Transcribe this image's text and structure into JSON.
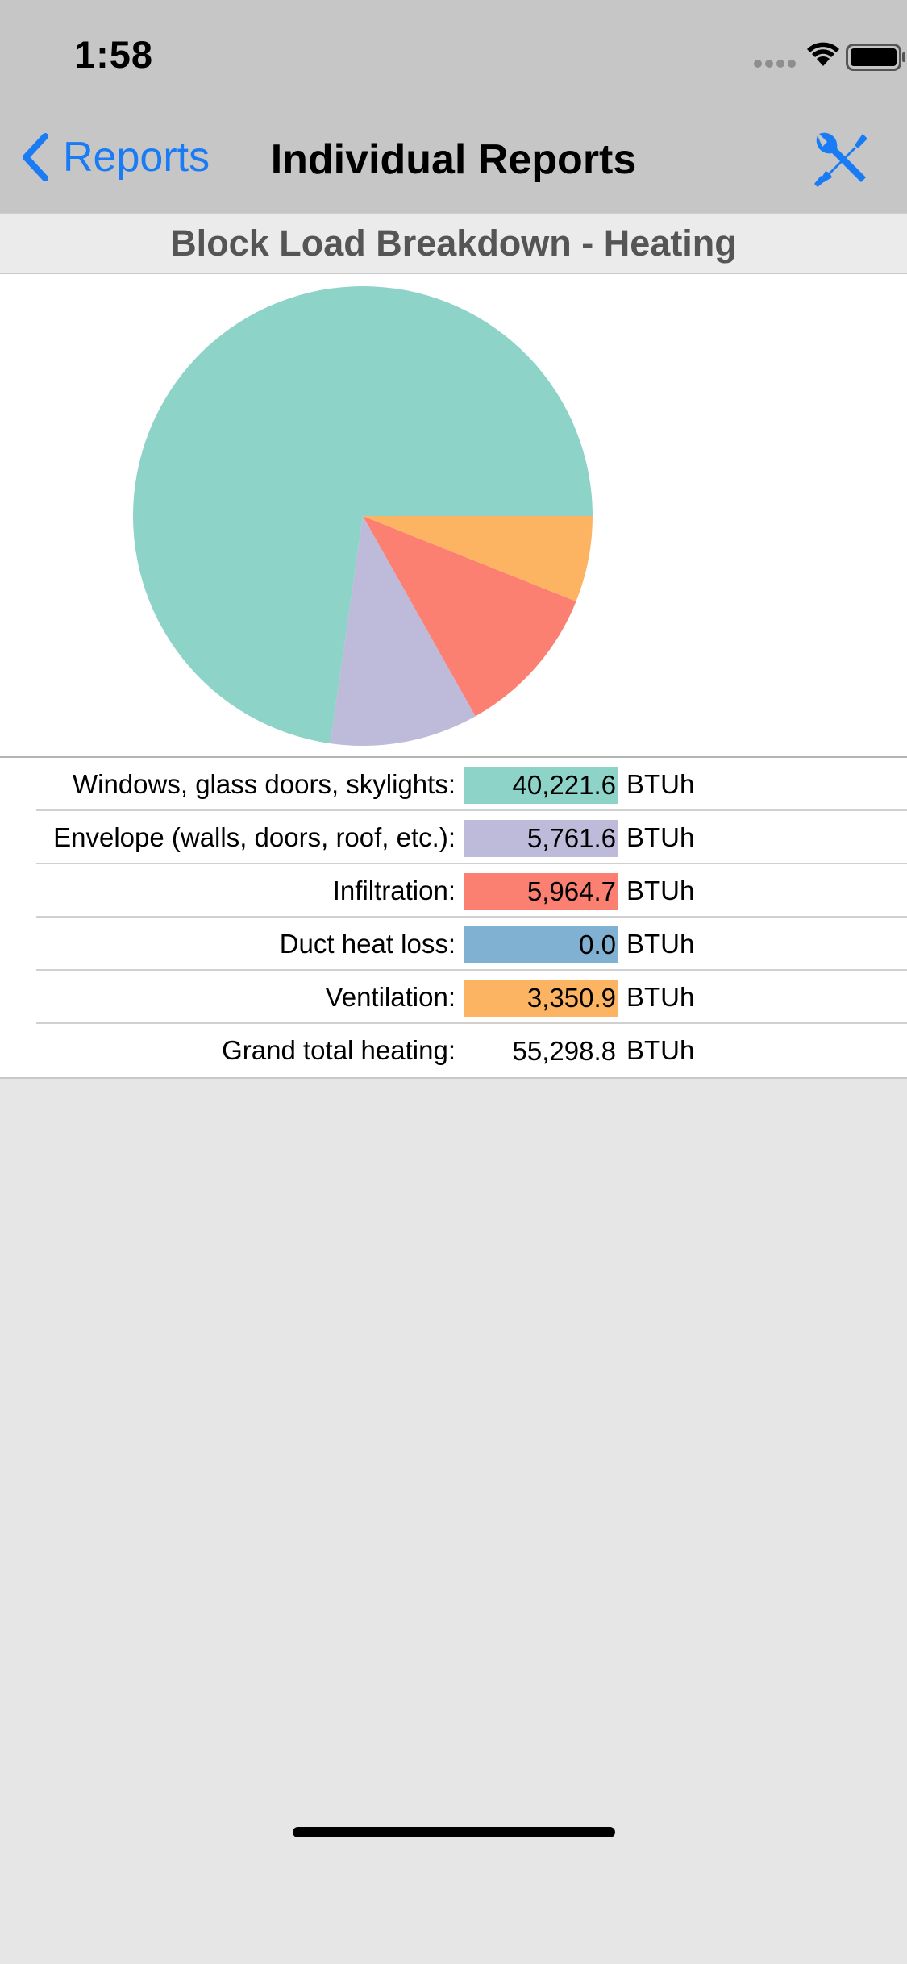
{
  "status_bar": {
    "time": "1:58"
  },
  "nav": {
    "back_label": "Reports",
    "title": "Individual Reports",
    "accent_color": "#1a7cf5"
  },
  "section": {
    "title": "Block Load Breakdown - Heating"
  },
  "chart_data": {
    "type": "pie",
    "categories": [
      "Windows, glass doors, skylights",
      "Envelope (walls, doors, roof, etc.)",
      "Infiltration",
      "Duct heat loss",
      "Ventilation"
    ],
    "values": [
      40221.6,
      5761.6,
      5964.7,
      0.0,
      3350.9
    ],
    "colors": [
      "#8dd3c7",
      "#bebada",
      "#fb8072",
      "#80b1d3",
      "#fdb462"
    ],
    "title": ""
  },
  "table": {
    "rows": [
      {
        "label": "Windows, glass doors, skylights:",
        "value": "40,221.6",
        "unit": "BTUh",
        "color": "#8dd3c7"
      },
      {
        "label": "Envelope (walls, doors, roof, etc.):",
        "value": "5,761.6",
        "unit": "BTUh",
        "color": "#bebada"
      },
      {
        "label": "Infiltration:",
        "value": "5,964.7",
        "unit": "BTUh",
        "color": "#fb8072"
      },
      {
        "label": "Duct heat loss:",
        "value": "0.0",
        "unit": "BTUh",
        "color": "#80b1d3"
      },
      {
        "label": "Ventilation:",
        "value": "3,350.9",
        "unit": "BTUh",
        "color": "#fdb462"
      },
      {
        "label": "Grand total heating:",
        "value": "55,298.8",
        "unit": "BTUh",
        "color": ""
      }
    ]
  }
}
